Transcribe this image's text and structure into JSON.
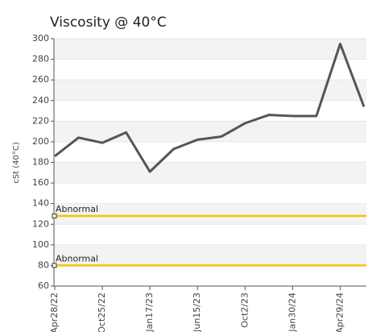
{
  "chart_data": {
    "type": "line",
    "title": "Viscosity @ 40°C",
    "y_label": "cSt (40°C)",
    "categories": [
      "Apr28/22",
      null,
      "Oct25/22",
      null,
      "Jan17/23",
      null,
      "Jun15/23",
      null,
      "Oct2/23",
      null,
      "Jan30/24",
      null,
      "Apr29/24",
      null
    ],
    "values": [
      186,
      204,
      199,
      209,
      171,
      193,
      202,
      205,
      218,
      226,
      225,
      225,
      295,
      234
    ],
    "color": "#555555",
    "ylim": [
      60,
      300
    ],
    "yticks": [
      60,
      80,
      100,
      120,
      140,
      160,
      180,
      200,
      220,
      240,
      260,
      280,
      300
    ],
    "grid": true,
    "thresholds": [
      {
        "label": "Abnormal",
        "value": 128
      },
      {
        "label": "Abnormal",
        "value": 80
      }
    ],
    "threshold_color": "#f5c400"
  }
}
